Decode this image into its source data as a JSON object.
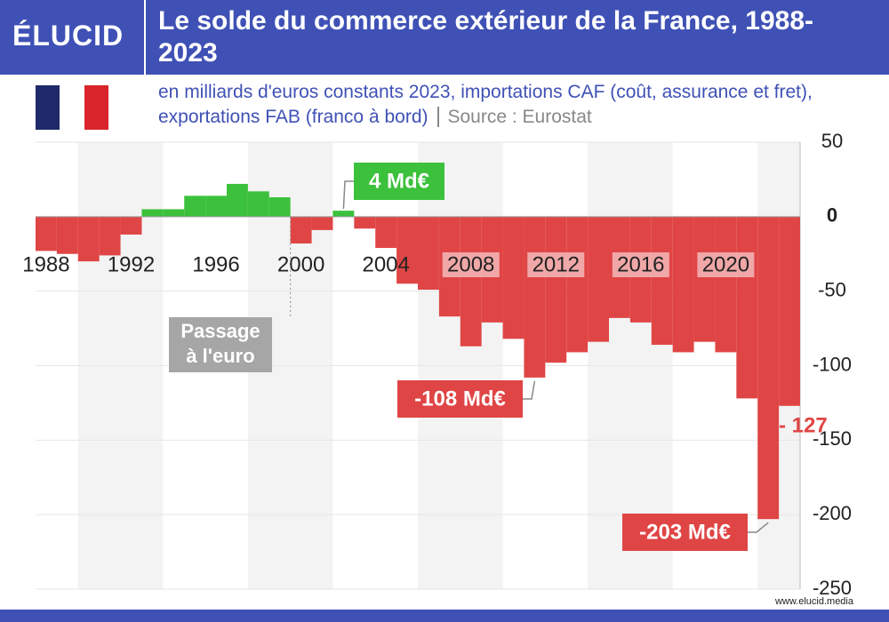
{
  "brand": "ÉLUCID",
  "footer": "www.elucid.media",
  "chart_data": {
    "type": "bar",
    "title": "Le solde du commerce extérieur de la France, 1988-2023",
    "subtitle": "en milliards d'euros constants 2023, importations CAF (coût, assurance et fret), exportations FAB (franco à bord)",
    "source": "Source : Eurostat",
    "x": [
      1988,
      1989,
      1990,
      1991,
      1992,
      1993,
      1994,
      1995,
      1996,
      1997,
      1998,
      1999,
      2000,
      2001,
      2002,
      2003,
      2004,
      2005,
      2006,
      2007,
      2008,
      2009,
      2010,
      2011,
      2012,
      2013,
      2014,
      2015,
      2016,
      2017,
      2018,
      2019,
      2020,
      2021,
      2022,
      2023
    ],
    "values": [
      -23,
      -25,
      -30,
      -26,
      -12,
      5,
      5,
      14,
      14,
      22,
      17,
      13,
      -18,
      -9,
      4,
      -8,
      -21,
      -45,
      -49,
      -67,
      -87,
      -71,
      -82,
      -108,
      -98,
      -91,
      -84,
      -68,
      -71,
      -86,
      -91,
      -84,
      -91,
      -122,
      -203,
      -127
    ],
    "xlim": [
      1987.5,
      2023.5
    ],
    "xticks": [
      1988,
      1992,
      1996,
      2000,
      2004,
      2008,
      2012,
      2016,
      2020
    ],
    "ylim": [
      -250,
      50
    ],
    "yticks": [
      50,
      0,
      -50,
      -100,
      -150,
      -200,
      -250
    ],
    "positive_color": "#3cc13c",
    "negative_color": "#e04545",
    "annotations": [
      {
        "text": "4 Md€",
        "index": 14
      },
      {
        "text": "Passage à l'euro",
        "index": 11
      },
      {
        "text": "-108 Md€",
        "index": 23
      },
      {
        "text": "-203 Md€",
        "index": 34
      },
      {
        "text": "- 127",
        "index": 35
      }
    ]
  }
}
